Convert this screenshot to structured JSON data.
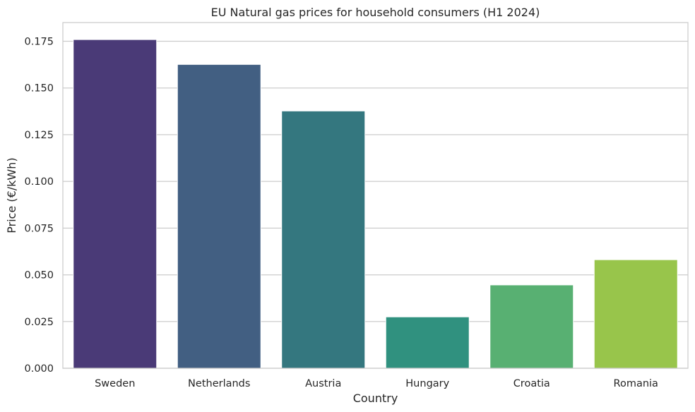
{
  "chart_data": {
    "type": "bar",
    "title": "EU Natural gas prices for household consumers (H1 2024)",
    "xlabel": "Country",
    "ylabel": "Price (€/kWh)",
    "categories": [
      "Sweden",
      "Netherlands",
      "Austria",
      "Hungary",
      "Croatia",
      "Romania"
    ],
    "values": [
      0.1759,
      0.1626,
      0.1377,
      0.0275,
      0.0446,
      0.0581
    ],
    "colors": [
      "#4a3a77",
      "#425f82",
      "#34777f",
      "#30917f",
      "#58b072",
      "#98c54b"
    ],
    "ylim": [
      0,
      0.185
    ],
    "yticks": [
      0.0,
      0.025,
      0.05,
      0.075,
      0.1,
      0.125,
      0.15,
      0.175
    ],
    "ytick_labels": [
      "0.000",
      "0.025",
      "0.050",
      "0.075",
      "0.100",
      "0.125",
      "0.150",
      "0.175"
    ],
    "grid": "horizontal",
    "style": {
      "grid_color": "#cccccc",
      "frame_color": "#cccccc",
      "text_color": "#262626"
    }
  }
}
